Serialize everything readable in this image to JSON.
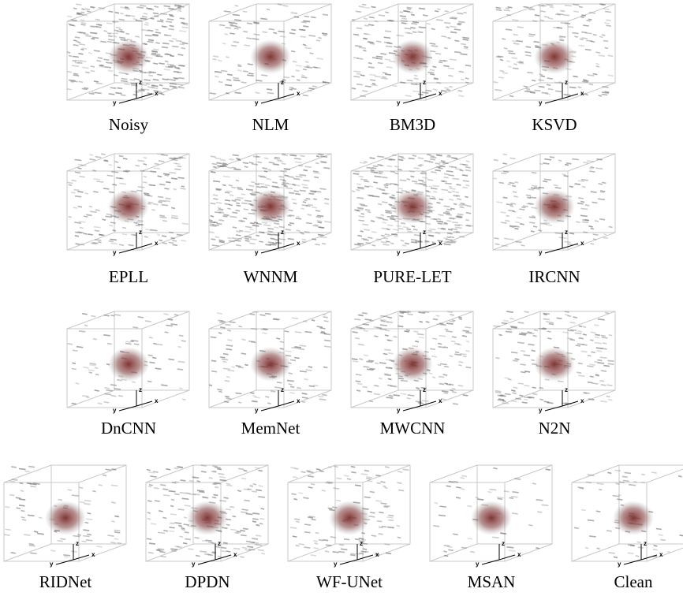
{
  "panels": [
    {
      "label": "Noisy"
    },
    {
      "label": "NLM"
    },
    {
      "label": "BM3D"
    },
    {
      "label": "KSVD"
    },
    {
      "label": "EPLL"
    },
    {
      "label": "WNNM"
    },
    {
      "label": "PURE-LET"
    },
    {
      "label": "IRCNN"
    },
    {
      "label": "DnCNN"
    },
    {
      "label": "MemNet"
    },
    {
      "label": "MWCNN"
    },
    {
      "label": "N2N"
    },
    {
      "label": "RIDNet"
    },
    {
      "label": "DPDN"
    },
    {
      "label": "WF-UNet"
    },
    {
      "label": "MSAN"
    },
    {
      "label": "Clean"
    }
  ],
  "axis_labels": {
    "x": "x",
    "y": "y",
    "z": "z"
  }
}
